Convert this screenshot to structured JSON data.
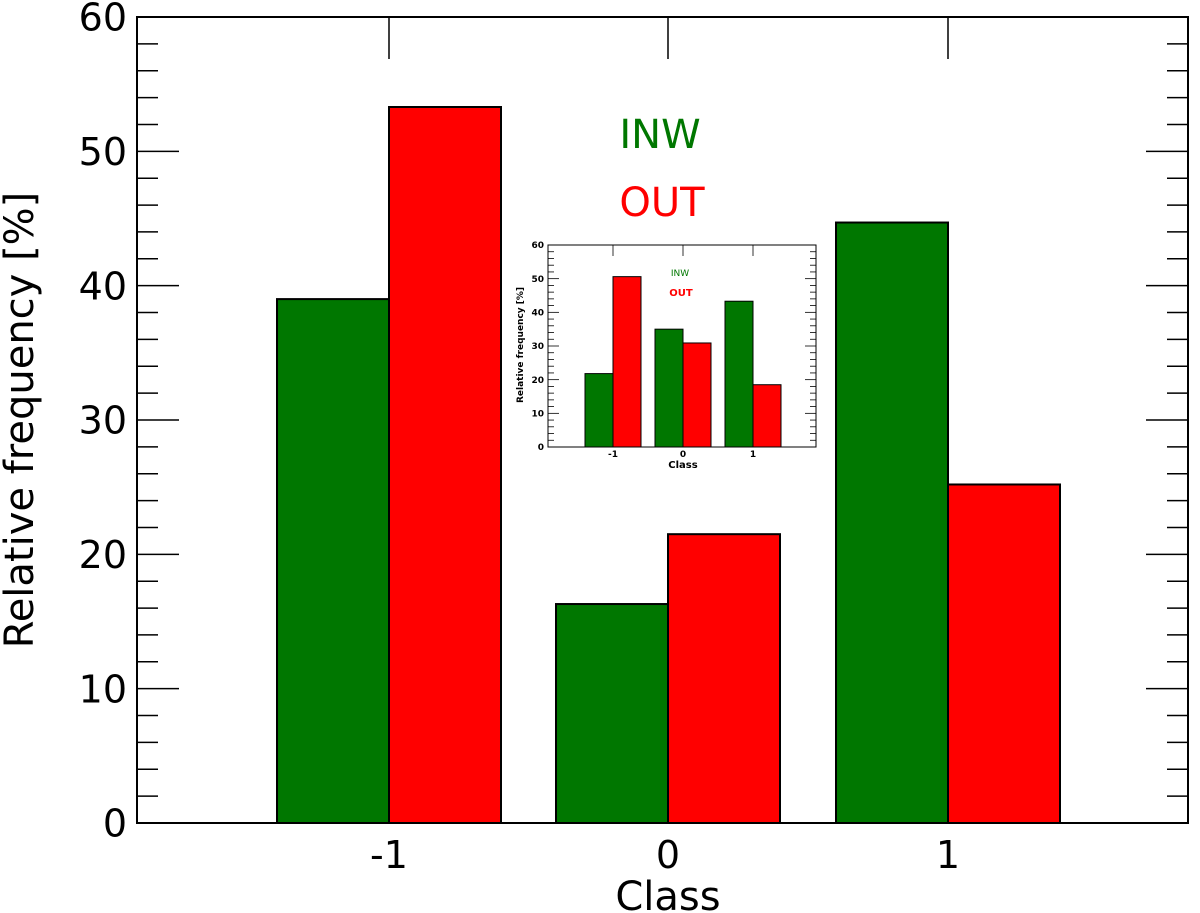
{
  "chart_data": [
    {
      "type": "bar",
      "categories": [
        "-1",
        "0",
        "1"
      ],
      "series": [
        {
          "name": "INW",
          "color": "#007700",
          "values": [
            39.0,
            16.3,
            44.7
          ]
        },
        {
          "name": "OUT",
          "color": "#ff0000",
          "values": [
            53.3,
            21.5,
            25.2
          ]
        }
      ],
      "xlabel": "Class",
      "ylabel": "Relative frequency [%]",
      "ylim": [
        0,
        60
      ],
      "yticks": [
        "0",
        "10",
        "20",
        "30",
        "40",
        "50",
        "60"
      ],
      "legend_placement": "upper center (text labels only)",
      "grid": false
    },
    {
      "type": "bar",
      "inset": true,
      "categories": [
        "-1",
        "0",
        "1"
      ],
      "series": [
        {
          "name": "INW",
          "color": "#007700",
          "values": [
            21.8,
            35.0,
            43.3
          ]
        },
        {
          "name": "OUT",
          "color": "#ff0000",
          "values": [
            50.6,
            30.9,
            18.5
          ]
        }
      ],
      "xlabel": "Class",
      "ylabel": "Relative frequency [%]",
      "ylim": [
        0,
        60
      ],
      "yticks": [
        "0",
        "10",
        "20",
        "30",
        "40",
        "50",
        "60"
      ],
      "legend_placement": "upper center (text labels only)",
      "grid": false
    }
  ]
}
